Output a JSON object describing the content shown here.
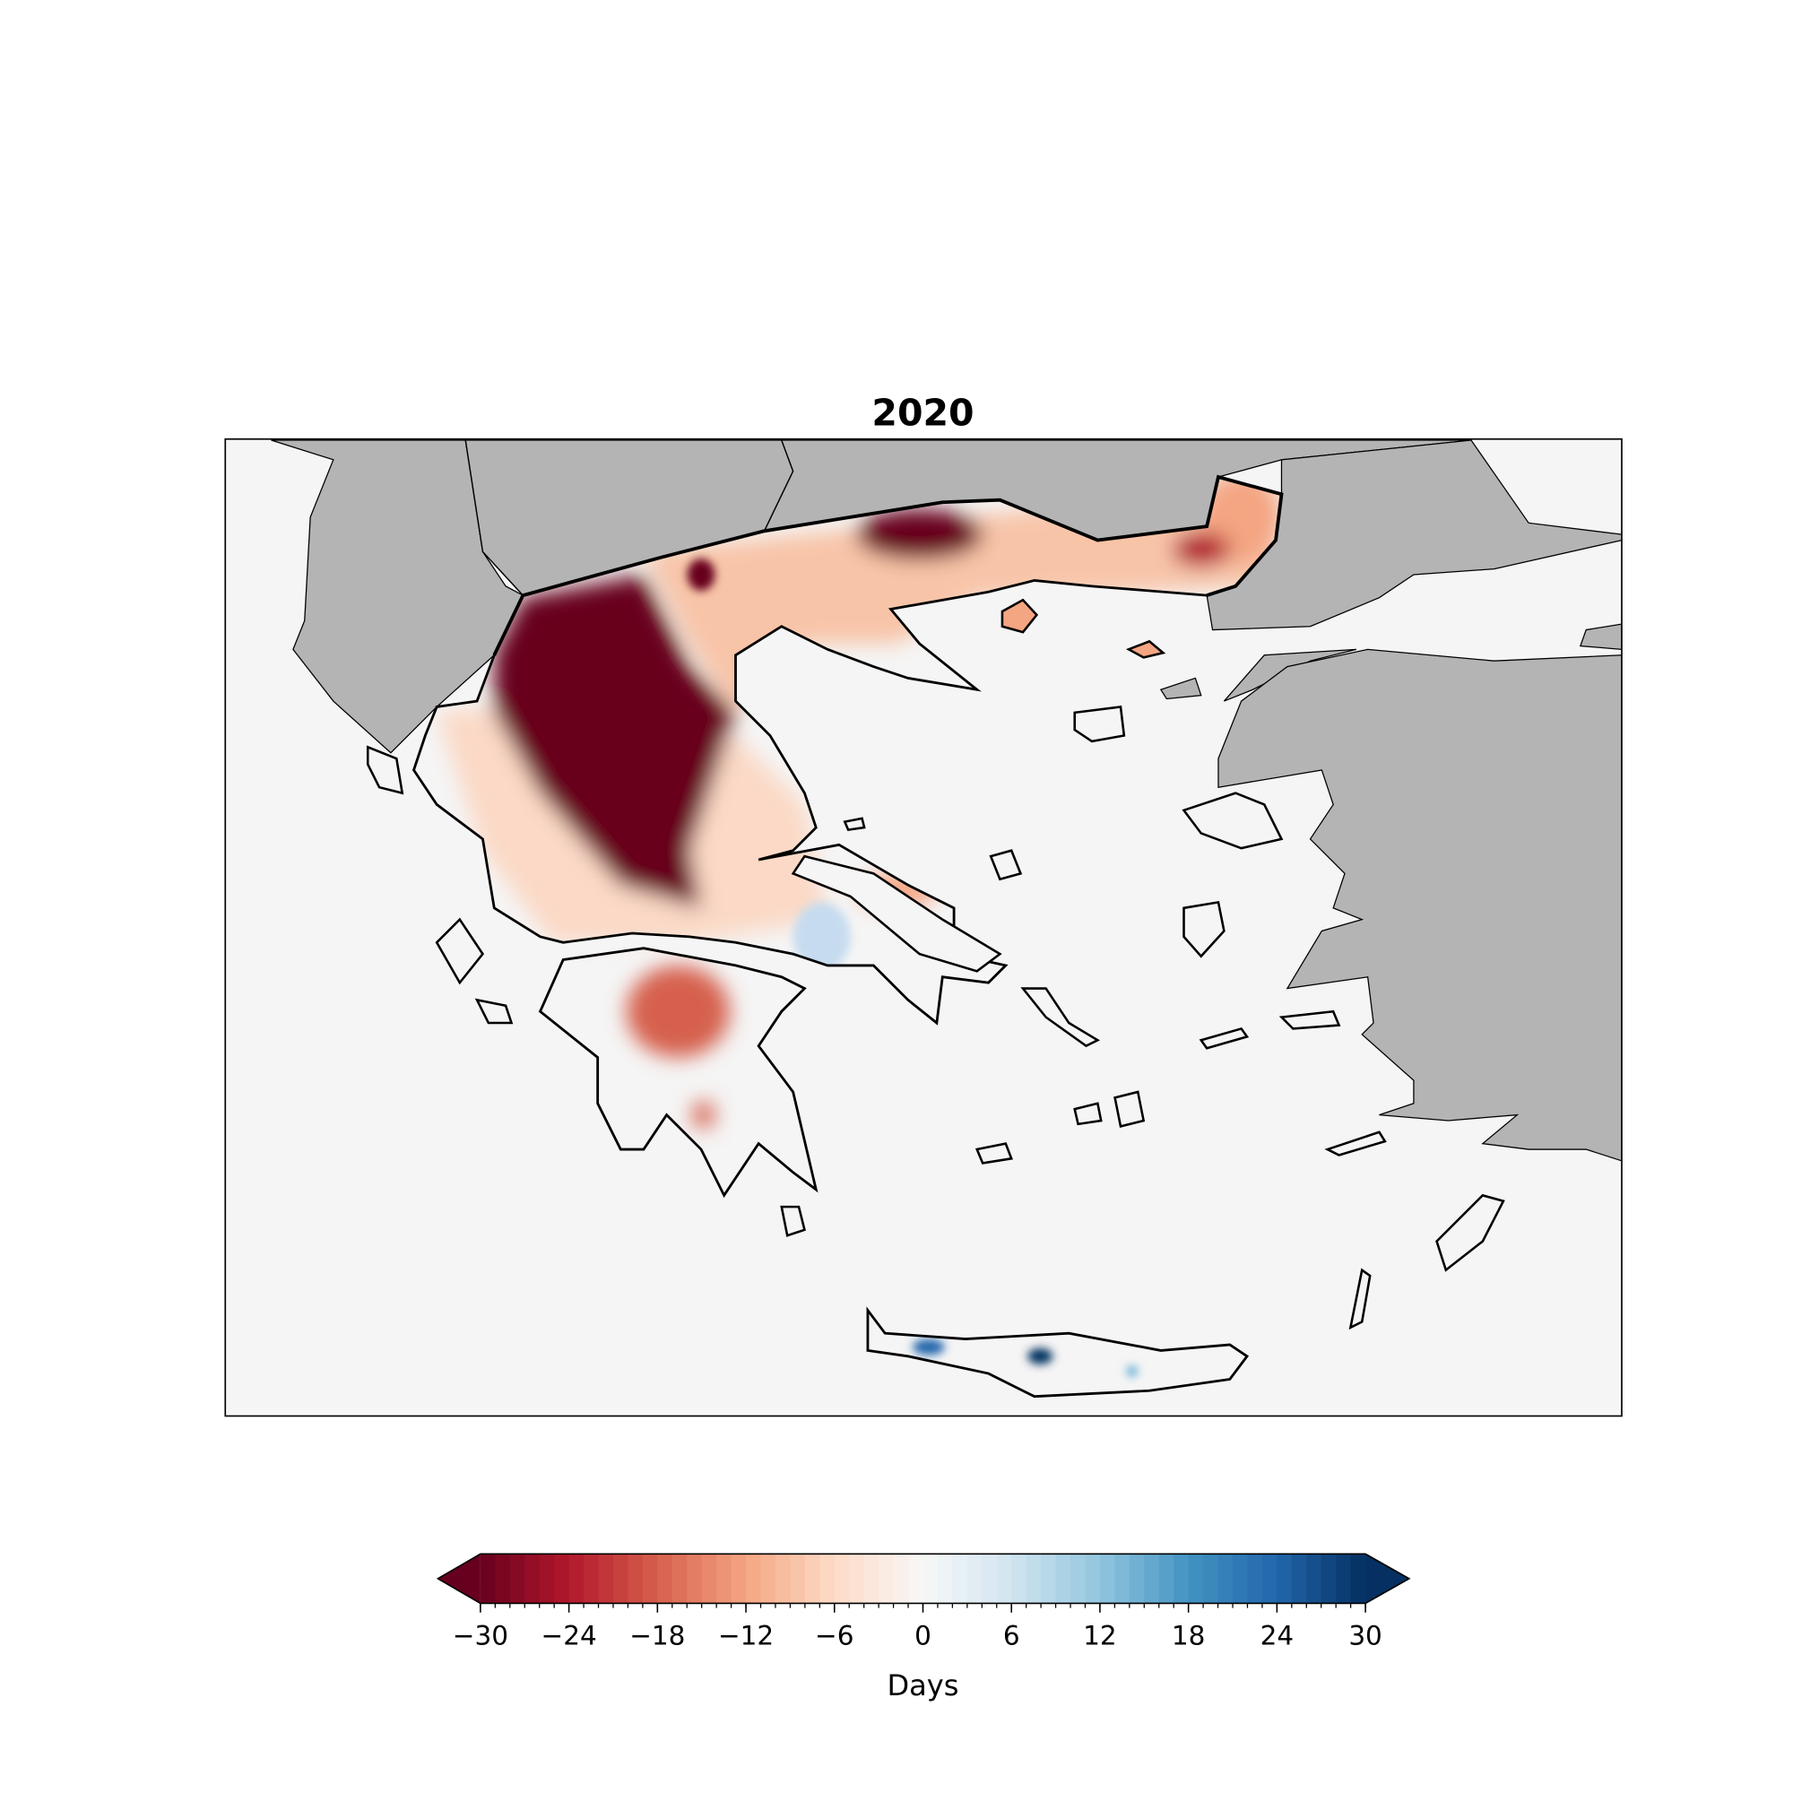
{
  "chart_data": {
    "type": "heatmap",
    "subtype": "geographic-map",
    "title": "2020",
    "region": "Greece and Aegean",
    "background_land_color": "#b4b4b4",
    "ocean_color": "#f5f5f5",
    "colormap": "RdBu",
    "colorbar": {
      "label": "Days",
      "range": [
        -30,
        30
      ],
      "extend": "both",
      "orientation": "horizontal",
      "placement": "bottom",
      "major_ticks": [
        -30,
        -24,
        -18,
        -12,
        -6,
        0,
        6,
        12,
        18,
        24,
        30
      ],
      "tick_labels": [
        "−30",
        "−24",
        "−18",
        "−12",
        "−6",
        "0",
        "6",
        "12",
        "18",
        "24",
        "30"
      ],
      "minor_tick_step": 1,
      "level_step": 1
    },
    "colors": {
      "min": "#67001f",
      "mid": "#f7f7f7",
      "max": "#053061"
    },
    "features": [
      {
        "area": "northwestern mainland (Epirus / Western Macedonia)",
        "approx_value": -30
      },
      {
        "area": "northern border (Macedonia / Thrace)",
        "approx_value": -20
      },
      {
        "area": "central mainland",
        "approx_value": -8
      },
      {
        "area": "northern Peloponnese",
        "approx_value": -14
      },
      {
        "area": "Boeotia",
        "approx_value": 6
      },
      {
        "area": "western and central Crete",
        "approx_value": 20
      },
      {
        "area": "Aegean islands",
        "approx_value": 0
      }
    ]
  }
}
